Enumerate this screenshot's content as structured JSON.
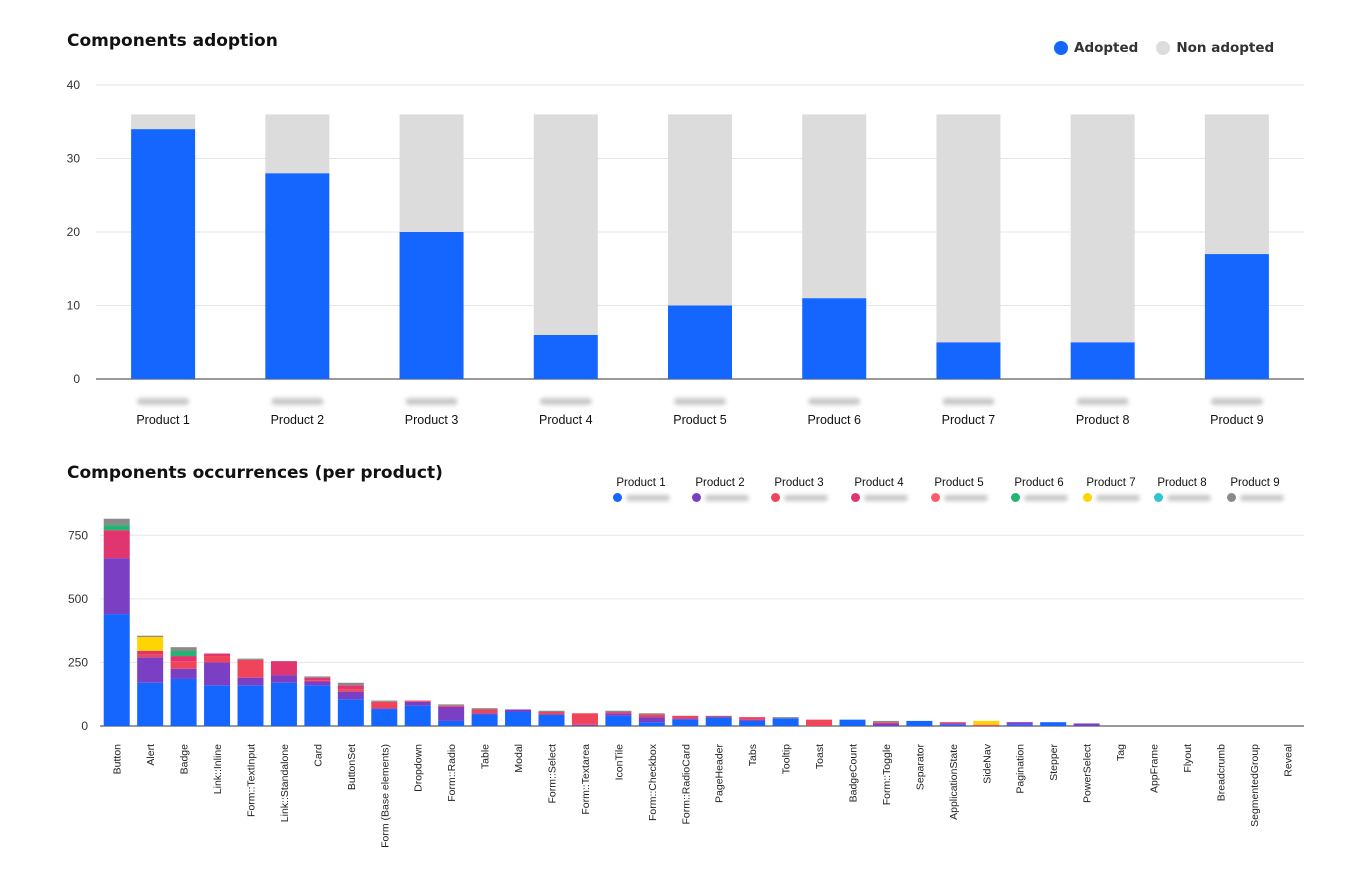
{
  "colors": {
    "adopted": "#1565ff",
    "non_adopted": "#dcdcdc",
    "grid": "#e6e6e6",
    "axis": "#333333"
  },
  "chart1": {
    "title": "Components adoption",
    "legend": {
      "adopted": "Adopted",
      "non_adopted": "Non adopted"
    }
  },
  "chart2": {
    "title": "Components occurrences (per product)"
  },
  "chart_data": [
    {
      "type": "bar",
      "stacked": true,
      "title": "Components adoption",
      "categories": [
        "Product 1",
        "Product 2",
        "Product 3",
        "Product 4",
        "Product 5",
        "Product 6",
        "Product 7",
        "Product 8",
        "Product 9"
      ],
      "series": [
        {
          "name": "Adopted",
          "color": "#1565ff",
          "values": [
            34,
            28,
            20,
            6,
            10,
            11,
            5,
            5,
            17
          ]
        },
        {
          "name": "Non adopted",
          "color": "#dcdcdc",
          "values": [
            2,
            8,
            16,
            30,
            26,
            25,
            31,
            31,
            19
          ]
        }
      ],
      "ylim": [
        0,
        40
      ],
      "yticks": [
        0,
        10,
        20,
        30,
        40
      ],
      "grid": true,
      "legend": "top-right"
    },
    {
      "type": "bar",
      "stacked": true,
      "title": "Components occurrences (per product)",
      "categories": [
        "Button",
        "Alert",
        "Badge",
        "Link::Inline",
        "Form::TextInput",
        "Link::Standalone",
        "Card",
        "ButtonSet",
        "Form (Base elements)",
        "Dropdown",
        "Form::Radio",
        "Table",
        "Modal",
        "Form::Select",
        "Form::Textarea",
        "IconTile",
        "Form::Checkbox",
        "Form::RadioCard",
        "PageHeader",
        "Tabs",
        "Tooltip",
        "Toast",
        "BadgeCount",
        "Form::Toggle",
        "Separator",
        "ApplicationState",
        "SideNav",
        "Pagination",
        "Stepper",
        "PowerSelect",
        "Tag",
        "AppFrame",
        "Flyout",
        "Breadcrumb",
        "SegmentedGroup",
        "Reveal"
      ],
      "series": [
        {
          "name": "Product 1",
          "color": "#1565ff",
          "values": [
            440,
            170,
            185,
            160,
            160,
            170,
            160,
            105,
            65,
            80,
            20,
            45,
            55,
            45,
            0,
            40,
            15,
            25,
            35,
            20,
            30,
            0,
            25,
            0,
            20,
            5,
            0,
            5,
            15,
            0,
            0,
            0,
            0,
            0,
            0,
            0
          ]
        },
        {
          "name": "Product 2",
          "color": "#7b3fc4",
          "values": [
            220,
            100,
            40,
            90,
            30,
            30,
            15,
            30,
            5,
            15,
            55,
            5,
            10,
            0,
            5,
            10,
            20,
            5,
            0,
            5,
            0,
            0,
            0,
            10,
            0,
            5,
            0,
            10,
            0,
            10,
            0,
            0,
            0,
            0,
            0,
            0
          ]
        },
        {
          "name": "Product 3",
          "color": "#f0445b",
          "values": [
            0,
            10,
            30,
            25,
            70,
            0,
            5,
            10,
            25,
            5,
            5,
            15,
            0,
            10,
            45,
            5,
            10,
            10,
            5,
            10,
            0,
            25,
            0,
            5,
            0,
            5,
            5,
            0,
            0,
            0,
            0,
            0,
            0,
            0,
            0,
            0
          ]
        },
        {
          "name": "Product 4",
          "color": "#e0356e",
          "values": [
            110,
            15,
            20,
            10,
            0,
            55,
            10,
            15,
            0,
            0,
            0,
            0,
            0,
            0,
            0,
            0,
            0,
            0,
            0,
            0,
            0,
            0,
            0,
            0,
            0,
            0,
            0,
            0,
            0,
            0,
            0,
            0,
            0,
            0,
            0,
            0
          ]
        },
        {
          "name": "Product 5",
          "color": "#ff5a6a",
          "values": [
            0,
            0,
            0,
            0,
            0,
            0,
            0,
            0,
            0,
            0,
            0,
            0,
            0,
            0,
            0,
            0,
            0,
            0,
            0,
            0,
            0,
            0,
            0,
            0,
            0,
            0,
            0,
            0,
            0,
            0,
            0,
            0,
            0,
            0,
            0,
            0
          ]
        },
        {
          "name": "Product 6",
          "color": "#22b573",
          "values": [
            20,
            0,
            20,
            0,
            0,
            0,
            0,
            0,
            0,
            0,
            0,
            0,
            0,
            0,
            0,
            0,
            0,
            0,
            0,
            0,
            0,
            0,
            0,
            0,
            0,
            0,
            0,
            0,
            0,
            0,
            0,
            0,
            0,
            0,
            0,
            0
          ]
        },
        {
          "name": "Product 7",
          "color": "#ffd400",
          "values": [
            0,
            55,
            0,
            0,
            0,
            0,
            0,
            0,
            0,
            0,
            0,
            0,
            0,
            0,
            0,
            0,
            0,
            0,
            0,
            0,
            0,
            0,
            0,
            0,
            0,
            0,
            15,
            0,
            0,
            0,
            0,
            0,
            0,
            0,
            0,
            0
          ]
        },
        {
          "name": "Product 8",
          "color": "#2ec4cf",
          "values": [
            0,
            0,
            0,
            0,
            0,
            0,
            0,
            0,
            0,
            0,
            0,
            0,
            0,
            0,
            0,
            0,
            0,
            0,
            0,
            0,
            0,
            0,
            0,
            0,
            0,
            0,
            0,
            0,
            0,
            0,
            0,
            0,
            0,
            0,
            0,
            0
          ]
        },
        {
          "name": "Product 9",
          "color": "#8a8a8a",
          "values": [
            25,
            5,
            15,
            0,
            5,
            0,
            5,
            10,
            5,
            0,
            5,
            5,
            0,
            5,
            0,
            5,
            5,
            0,
            0,
            0,
            5,
            0,
            0,
            5,
            0,
            0,
            0,
            0,
            0,
            0,
            0,
            0,
            0,
            0,
            0,
            0
          ]
        }
      ],
      "ylim": [
        0,
        810
      ],
      "yticks": [
        0,
        250,
        500,
        750
      ],
      "grid": true,
      "legend": "top-right"
    }
  ]
}
